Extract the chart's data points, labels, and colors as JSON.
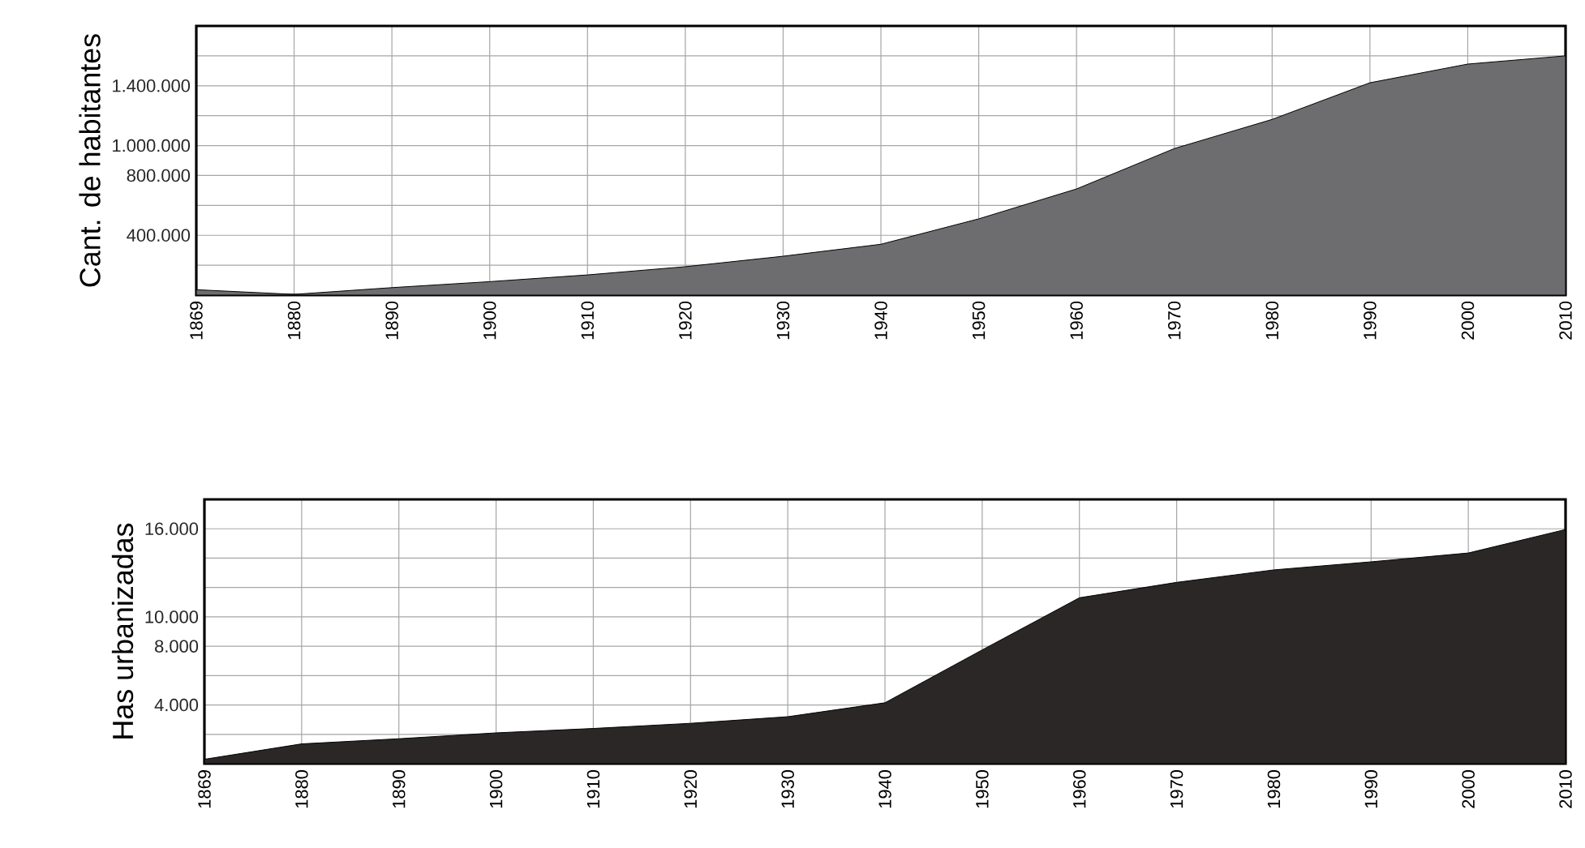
{
  "chart_data": [
    {
      "type": "area",
      "ylabel": "Cant. de habitantes",
      "categories": [
        "1869",
        "1880",
        "1890",
        "1900",
        "1910",
        "1920",
        "1930",
        "1940",
        "1950",
        "1960",
        "1970",
        "1980",
        "1990",
        "2000",
        "2010"
      ],
      "values": [
        36000,
        5000,
        50000,
        90000,
        135000,
        190000,
        260000,
        340000,
        510000,
        710000,
        980000,
        1175000,
        1420000,
        1545000,
        1600000
      ],
      "color": "#6d6d70",
      "ylim": [
        0,
        1800000
      ],
      "yticks": [
        {
          "value": 200000,
          "label": null
        },
        {
          "value": 400000,
          "label": "400.000"
        },
        {
          "value": 600000,
          "label": null
        },
        {
          "value": 800000,
          "label": "800.000"
        },
        {
          "value": 1000000,
          "label": "1.000.000"
        },
        {
          "value": 1200000,
          "label": null
        },
        {
          "value": 1400000,
          "label": "1.400.000"
        },
        {
          "value": 1600000,
          "label": null
        }
      ],
      "grid": true
    },
    {
      "type": "area",
      "ylabel": "Has urbanizadas",
      "categories": [
        "1869",
        "1880",
        "1890",
        "1900",
        "1910",
        "1920",
        "1930",
        "1940",
        "1950",
        "1960",
        "1970",
        "1980",
        "1990",
        "2000",
        "2010"
      ],
      "values": [
        300,
        1350,
        1700,
        2100,
        2400,
        2750,
        3200,
        4150,
        7750,
        11300,
        12350,
        13200,
        13750,
        14350,
        15950
      ],
      "color": "#2b2727",
      "ylim": [
        0,
        18000
      ],
      "yticks": [
        {
          "value": 2000,
          "label": null
        },
        {
          "value": 4000,
          "label": "4.000"
        },
        {
          "value": 6000,
          "label": null
        },
        {
          "value": 8000,
          "label": "8.000"
        },
        {
          "value": 10000,
          "label": "10.000"
        },
        {
          "value": 12000,
          "label": null
        },
        {
          "value": 14000,
          "label": null
        },
        {
          "value": 16000,
          "label": "16.000"
        }
      ],
      "grid": true
    }
  ]
}
